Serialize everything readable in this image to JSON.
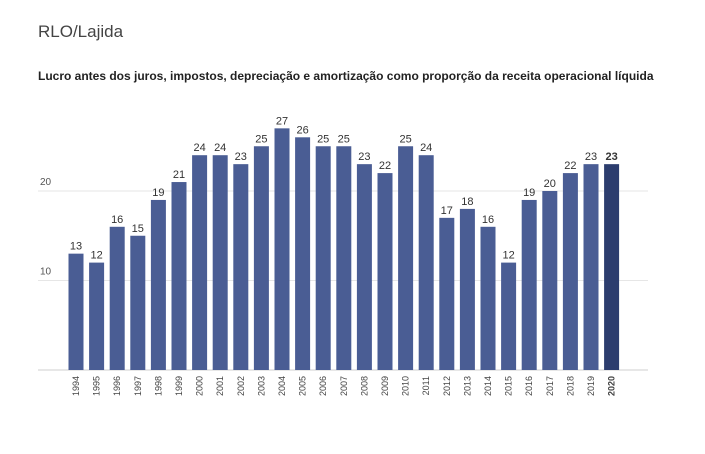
{
  "header": {
    "title": "RLO/Lajida"
  },
  "chart_data": {
    "type": "bar",
    "title": "Lucro antes dos juros, impostos, depreciação e amortização como proporção da receita operacional líquida",
    "categories": [
      "1994",
      "1995",
      "1996",
      "1997",
      "1998",
      "1999",
      "2000",
      "2001",
      "2002",
      "2003",
      "2004",
      "2005",
      "2006",
      "2007",
      "2008",
      "2009",
      "2010",
      "2011",
      "2012",
      "2013",
      "2014",
      "2015",
      "2016",
      "2017",
      "2018",
      "2019",
      "2020"
    ],
    "values": [
      13,
      12,
      16,
      15,
      19,
      21,
      24,
      24,
      23,
      25,
      27,
      26,
      25,
      25,
      23,
      22,
      25,
      24,
      17,
      18,
      16,
      12,
      19,
      20,
      22,
      23,
      23
    ],
    "yticks": [
      10,
      20
    ],
    "ylim": [
      0,
      30
    ],
    "grid": true,
    "highlight_category": "2020",
    "colors": {
      "bar": "#4a5d94",
      "highlight": "#2c3d6e",
      "grid": "#e6e6e6",
      "label": "#333333"
    }
  }
}
